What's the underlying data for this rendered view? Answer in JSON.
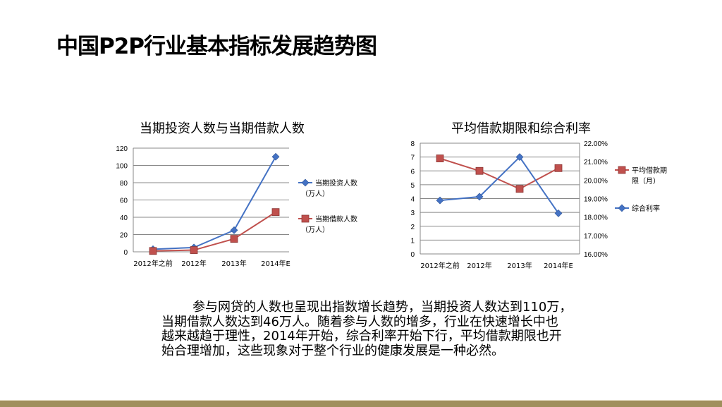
{
  "slide": {
    "title": "中国P2P行业基本指标发展趋势图",
    "paragraph_lines": [
      "参与网贷的人数也呈现出指数增长趋势，当期投资人数达到110万，",
      "当期借款人数达到46万人。随着参与人数的增多，行业在快速增长中也",
      "越来越趋于理性，2014年开始，综合利率开始下行，平均借款期限也开",
      "始合理增加，这些现象对于整个行业的健康发展是一种必然。"
    ],
    "bottom_bar_color": "#a08f5c"
  },
  "chart_data": [
    {
      "type": "line",
      "title": "当期投资人数与当期借款人数",
      "categories": [
        "2012年之前",
        "2012年",
        "2013年",
        "2014年E"
      ],
      "ylim": [
        0,
        120
      ],
      "yticks": [
        "0",
        "20",
        "40",
        "60",
        "80",
        "100",
        "120"
      ],
      "grid": true,
      "legend": "right",
      "series": [
        {
          "name_lines": [
            "当期投资人数",
            "（万人）"
          ],
          "values": [
            3,
            5,
            25,
            110
          ],
          "color": "#4472c4",
          "marker": "diamond"
        },
        {
          "name_lines": [
            "当期借款人数",
            "（万人）"
          ],
          "values": [
            1,
            2,
            15,
            46
          ],
          "color": "#c0504d",
          "marker": "square"
        }
      ]
    },
    {
      "type": "line",
      "title": "平均借款期限和综合利率",
      "categories": [
        "2012年之前",
        "2012年",
        "2013年",
        "2014年E"
      ],
      "ylim": [
        0,
        8
      ],
      "yticks": [
        "0",
        "1",
        "2",
        "3",
        "4",
        "5",
        "6",
        "7",
        "8"
      ],
      "y2lim": [
        16,
        22
      ],
      "y2ticks": [
        "16.00%",
        "17.00%",
        "18.00%",
        "19.00%",
        "20.00%",
        "21.00%",
        "22.00%"
      ],
      "grid": true,
      "legend": "right",
      "series": [
        {
          "name_lines": [
            "平均借款期",
            "限（月）"
          ],
          "values": [
            6.9,
            6.0,
            4.7,
            6.2
          ],
          "axis": "left",
          "color": "#c0504d",
          "marker": "square"
        },
        {
          "name_lines": [
            "综合利率"
          ],
          "values": [
            18.9,
            19.1,
            21.25,
            18.2
          ],
          "axis": "right",
          "color": "#4472c4",
          "marker": "diamond"
        }
      ]
    }
  ]
}
